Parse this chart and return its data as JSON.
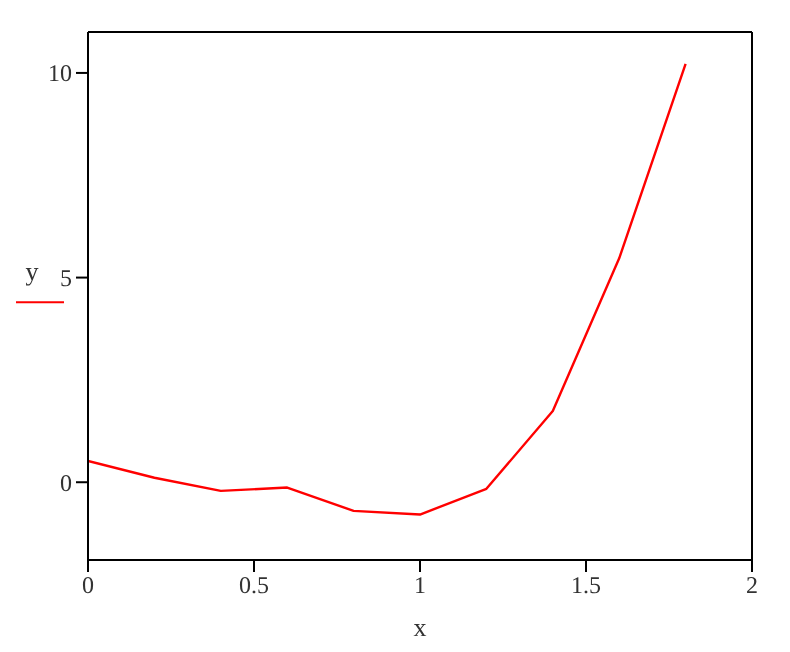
{
  "chart_data": {
    "type": "line",
    "xlabel": "x",
    "ylabel": "y",
    "x": [
      0,
      0.2,
      0.4,
      0.6,
      0.8,
      1.0,
      1.2,
      1.4,
      1.6,
      1.8
    ],
    "series": [
      {
        "color": "#ff0000",
        "values": [
          0.52,
          0.11,
          -0.21,
          -0.13,
          -0.7,
          -0.79,
          -0.16,
          1.74,
          5.47,
          10.22
        ]
      }
    ],
    "xlim": [
      0,
      2
    ],
    "xticks": [
      0,
      0.5,
      1,
      1.5,
      2
    ],
    "ylim": [
      -1.9,
      11
    ],
    "yticks": [
      0,
      5,
      10
    ],
    "grid": false,
    "legend": false,
    "marker": "none",
    "line_style": "solid"
  }
}
